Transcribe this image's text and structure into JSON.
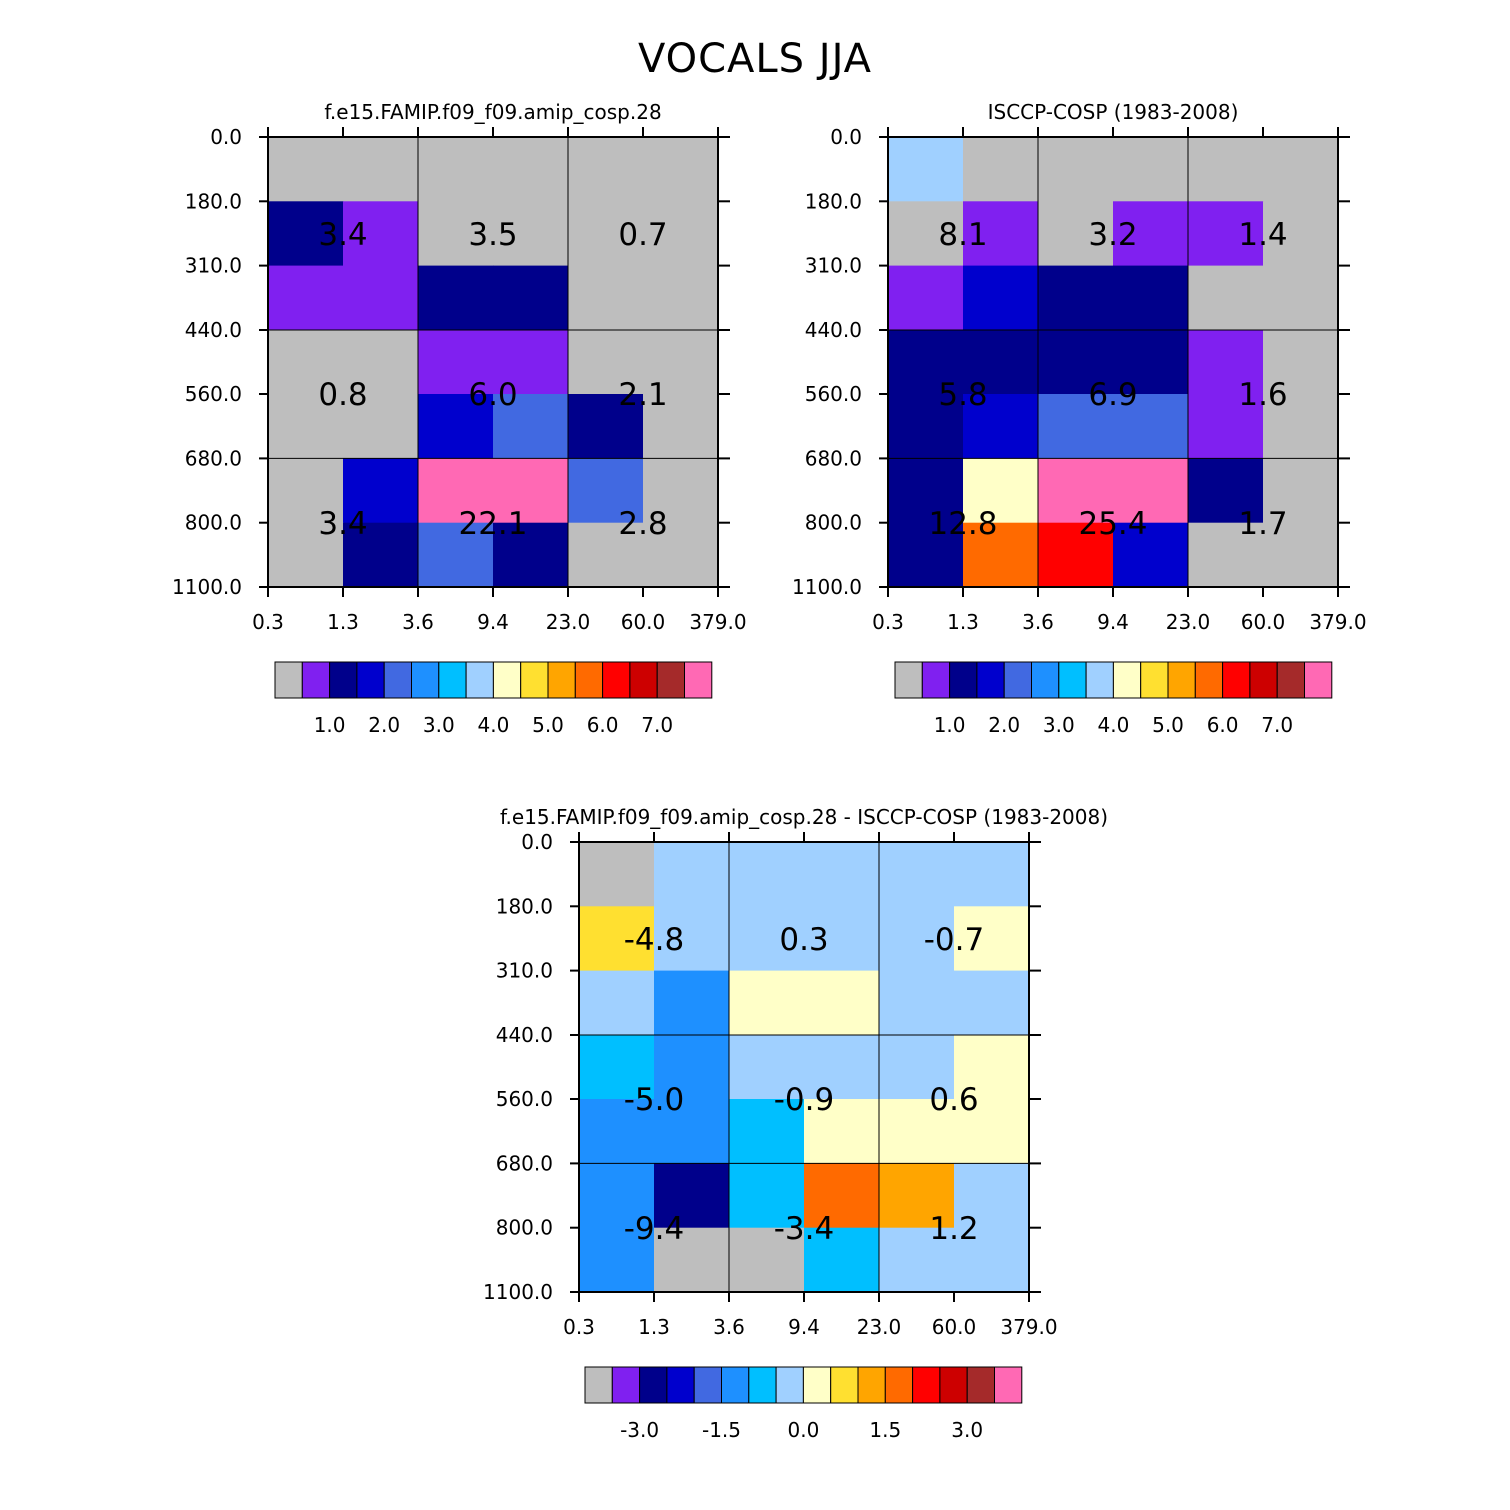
{
  "figure_title": "VOCALS JJA",
  "chart_data": [
    {
      "type": "heatmap",
      "title": "f.e15.FAMIP.f09_f09.amip_cosp.28",
      "x_ticks": [
        "0.3",
        "1.3",
        "3.6",
        "9.4",
        "23.0",
        "60.0",
        "379.0"
      ],
      "y_ticks": [
        "0.0",
        "180.0",
        "310.0",
        "440.0",
        "560.0",
        "680.0",
        "800.0",
        "1100.0"
      ],
      "xlabel": "",
      "ylabel": "",
      "cell_color_index": [
        [
          0,
          0,
          0,
          0,
          0,
          0
        ],
        [
          2,
          1,
          0,
          0,
          0,
          0
        ],
        [
          1,
          1,
          2,
          2,
          0,
          0
        ],
        [
          0,
          0,
          1,
          1,
          0,
          0
        ],
        [
          0,
          0,
          3,
          4,
          2,
          0
        ],
        [
          0,
          3,
          15,
          15,
          4,
          0
        ],
        [
          0,
          2,
          4,
          2,
          0,
          0
        ]
      ],
      "block_values": [
        "3.4",
        "3.5",
        "0.7",
        "0.8",
        "6.0",
        "2.1",
        "3.4",
        "22.1",
        "2.8"
      ],
      "colorbar_labels": [
        "1.0",
        "2.0",
        "3.0",
        "4.0",
        "5.0",
        "6.0",
        "7.0"
      ]
    },
    {
      "type": "heatmap",
      "title": "ISCCP-COSP (1983-2008)",
      "x_ticks": [
        "0.3",
        "1.3",
        "3.6",
        "9.4",
        "23.0",
        "60.0",
        "379.0"
      ],
      "y_ticks": [
        "0.0",
        "180.0",
        "310.0",
        "440.0",
        "560.0",
        "680.0",
        "800.0",
        "1100.0"
      ],
      "xlabel": "",
      "ylabel": "",
      "cell_color_index": [
        [
          7,
          0,
          0,
          0,
          0,
          0
        ],
        [
          0,
          1,
          0,
          1,
          1,
          0
        ],
        [
          1,
          3,
          2,
          2,
          0,
          0
        ],
        [
          2,
          2,
          2,
          2,
          1,
          0
        ],
        [
          2,
          3,
          4,
          4,
          1,
          0
        ],
        [
          2,
          8,
          15,
          15,
          2,
          0
        ],
        [
          2,
          11,
          12,
          3,
          0,
          0
        ]
      ],
      "block_values": [
        "8.1",
        "3.2",
        "1.4",
        "5.8",
        "6.9",
        "1.6",
        "12.8",
        "25.4",
        "1.7"
      ],
      "colorbar_labels": [
        "1.0",
        "2.0",
        "3.0",
        "4.0",
        "5.0",
        "6.0",
        "7.0"
      ]
    },
    {
      "type": "heatmap",
      "title": "f.e15.FAMIP.f09_f09.amip_cosp.28 - ISCCP-COSP (1983-2008)",
      "x_ticks": [
        "0.3",
        "1.3",
        "3.6",
        "9.4",
        "23.0",
        "60.0",
        "379.0"
      ],
      "y_ticks": [
        "0.0",
        "180.0",
        "310.0",
        "440.0",
        "560.0",
        "680.0",
        "800.0",
        "1100.0"
      ],
      "xlabel": "",
      "ylabel": "",
      "cell_color_index": [
        [
          0,
          7,
          7,
          7,
          7,
          7
        ],
        [
          9,
          7,
          7,
          7,
          7,
          8
        ],
        [
          7,
          5,
          8,
          8,
          7,
          7
        ],
        [
          6,
          5,
          7,
          7,
          7,
          8
        ],
        [
          5,
          5,
          6,
          8,
          8,
          8
        ],
        [
          5,
          2,
          6,
          11,
          10,
          7
        ],
        [
          5,
          0,
          0,
          6,
          7,
          7
        ]
      ],
      "block_values": [
        "-4.8",
        "0.3",
        "-0.7",
        "-5.0",
        "-0.9",
        "0.6",
        "-9.4",
        "-3.4",
        "1.2"
      ],
      "colorbar_labels": [
        "-3.0",
        "-1.5",
        "0.0",
        "1.5",
        "3.0"
      ]
    }
  ],
  "palette": [
    "#bebebe",
    "#8020f0",
    "#00008b",
    "#0000cd",
    "#4169e1",
    "#1e90ff",
    "#00bfff",
    "#a0d0ff",
    "#ffffc8",
    "#ffe030",
    "#ffa500",
    "#ff6a00",
    "#ff0000",
    "#cd0000",
    "#a52a2a",
    "#ff69b4"
  ]
}
